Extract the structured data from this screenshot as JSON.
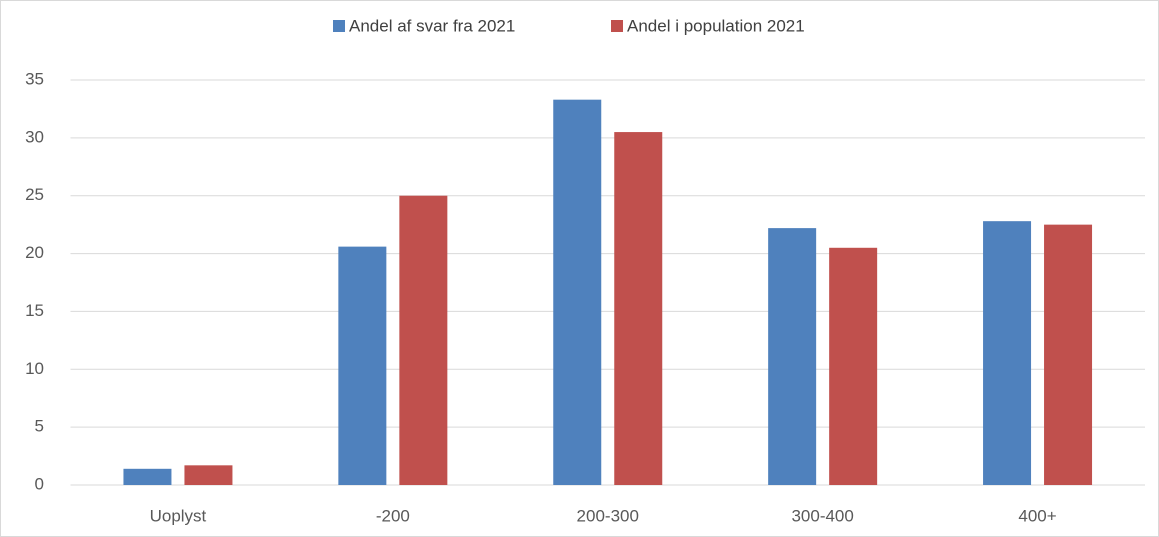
{
  "chart_data": {
    "type": "bar",
    "categories": [
      "Uoplyst",
      "-200",
      "200-300",
      "300-400",
      "400+"
    ],
    "series": [
      {
        "name": "Andel af svar fra 2021",
        "color": "#4f81bd",
        "values": [
          1.4,
          20.6,
          33.3,
          22.2,
          22.8
        ]
      },
      {
        "name": "Andel i population 2021",
        "color": "#c0504d",
        "values": [
          1.7,
          25.0,
          30.5,
          20.5,
          22.5
        ]
      }
    ],
    "ylim": [
      0,
      35
    ],
    "yticks": [
      0,
      5,
      10,
      15,
      20,
      25,
      30,
      35
    ],
    "grid": true,
    "legend": "top"
  }
}
